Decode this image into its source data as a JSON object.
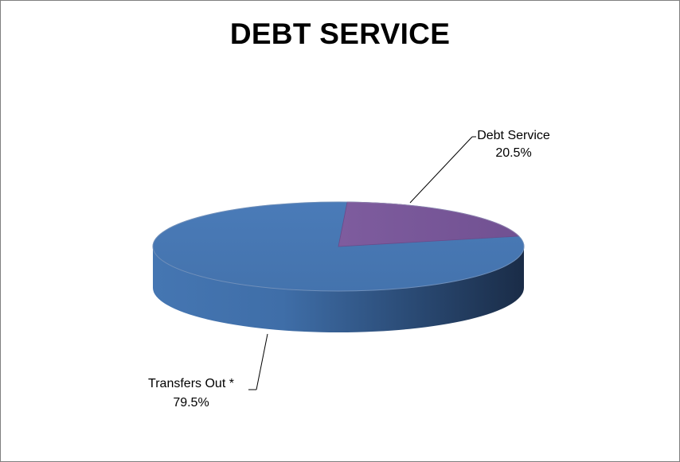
{
  "chart_data": {
    "type": "pie",
    "title": "DEBT SERVICE",
    "slices": [
      {
        "name": "Transfers Out *",
        "value": 79.5,
        "label_pct": "79.5%",
        "color": "#4a7ab5"
      },
      {
        "name": "Debt Service",
        "value": 20.5,
        "label_pct": "20.5%",
        "color": "#7b5a9a"
      }
    ],
    "style": "3d"
  }
}
